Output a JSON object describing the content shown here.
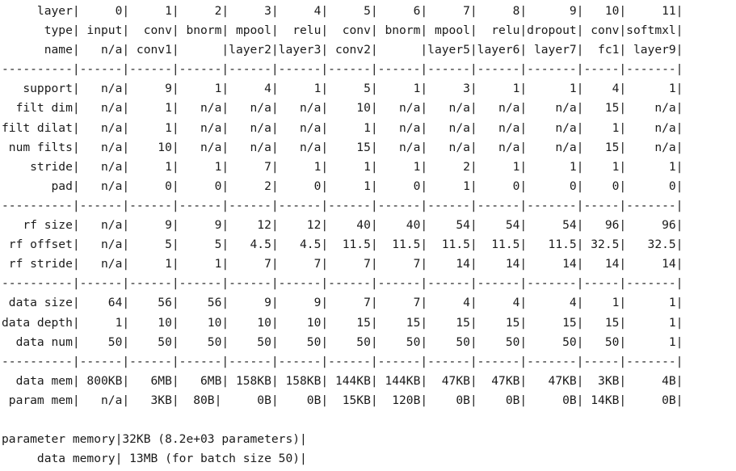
{
  "table_lines": [
    "     layer|     0|     1|     2|     3|     4|     5|     6|     7|     8|      9|   10|     11|",
    "      type| input|  conv| bnorm| mpool|  relu|  conv| bnorm| mpool|  relu|dropout| conv|softmxl|",
    "      name|   n/a| conv1|      |layer2|layer3| conv2|      |layer5|layer6| layer7|  fc1| layer9|",
    "----------|------|------|------|------|------|------|------|------|------|-------|-----|-------|",
    "   support|   n/a|     9|     1|     4|     1|     5|     1|     3|     1|      1|    4|      1|",
    "  filt dim|   n/a|     1|   n/a|   n/a|   n/a|    10|   n/a|   n/a|   n/a|    n/a|   15|    n/a|",
    "filt dilat|   n/a|     1|   n/a|   n/a|   n/a|     1|   n/a|   n/a|   n/a|    n/a|    1|    n/a|",
    " num filts|   n/a|    10|   n/a|   n/a|   n/a|    15|   n/a|   n/a|   n/a|    n/a|   15|    n/a|",
    "    stride|   n/a|     1|     1|     7|     1|     1|     1|     2|     1|      1|    1|      1|",
    "       pad|   n/a|     0|     0|     2|     0|     1|     0|     1|     0|      0|    0|      0|",
    "----------|------|------|------|------|------|------|------|------|------|-------|-----|-------|",
    "   rf size|   n/a|     9|     9|    12|    12|    40|    40|    54|    54|     54|   96|     96|",
    " rf offset|   n/a|     5|     5|   4.5|   4.5|  11.5|  11.5|  11.5|  11.5|   11.5| 32.5|   32.5|",
    " rf stride|   n/a|     1|     1|     7|     7|     7|     7|    14|    14|     14|   14|     14|",
    "----------|------|------|------|------|------|------|------|------|------|-------|-----|-------|",
    " data size|    64|    56|    56|     9|     9|     7|     7|     4|     4|      4|    1|      1|",
    "data depth|     1|    10|    10|    10|    10|    15|    15|    15|    15|     15|   15|      1|",
    "  data num|    50|    50|    50|    50|    50|    50|    50|    50|    50|     50|   50|      1|",
    "----------|------|------|------|------|------|------|------|------|------|-------|-----|-------|",
    "  data mem| 800KB|   6MB|   6MB| 158KB| 158KB| 144KB| 144KB|  47KB|  47KB|   47KB|  3KB|     4B|",
    " param mem|   n/a|   3KB|  80B|     0B|    0B|  15KB|  120B|    0B|    0B|     0B| 14KB|     0B|",
    "",
    "parameter memory|32KB (8.2e+03 parameters)|",
    "     data memory| 13MB (for batch size 50)|"
  ]
}
